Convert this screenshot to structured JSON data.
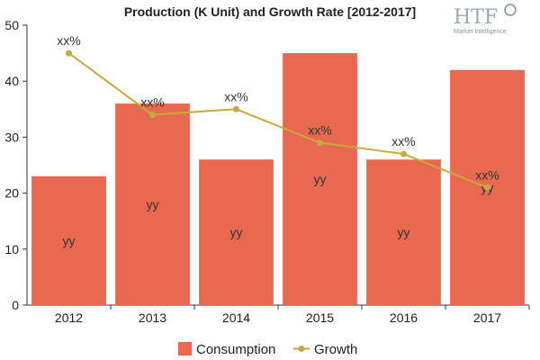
{
  "chart_data": {
    "type": "bar",
    "title": "Production (K Unit) and Growth Rate [2012-2017]",
    "categories": [
      "2012",
      "2013",
      "2014",
      "2015",
      "2016",
      "2017"
    ],
    "series": [
      {
        "name": "Consumption",
        "type": "bar",
        "values": [
          23,
          36,
          26,
          45,
          26,
          42
        ],
        "color": "#e8694f",
        "labels": [
          "yy",
          "yy",
          "yy",
          "yy",
          "yy",
          "yy"
        ]
      },
      {
        "name": "Growth",
        "type": "line",
        "values": [
          45,
          34,
          35,
          29,
          27,
          21
        ],
        "color": "#c9a840",
        "labels": [
          "xx%",
          "xx%",
          "xx%",
          "xx%",
          "xx%",
          "xx%"
        ]
      }
    ],
    "ylim": [
      0,
      50
    ],
    "yticks": [
      0,
      10,
      20,
      30,
      40,
      50
    ],
    "grid": false,
    "legend_position": "bottom"
  },
  "logo": {
    "text": "HTF",
    "subtext": "Market Intelligence"
  }
}
